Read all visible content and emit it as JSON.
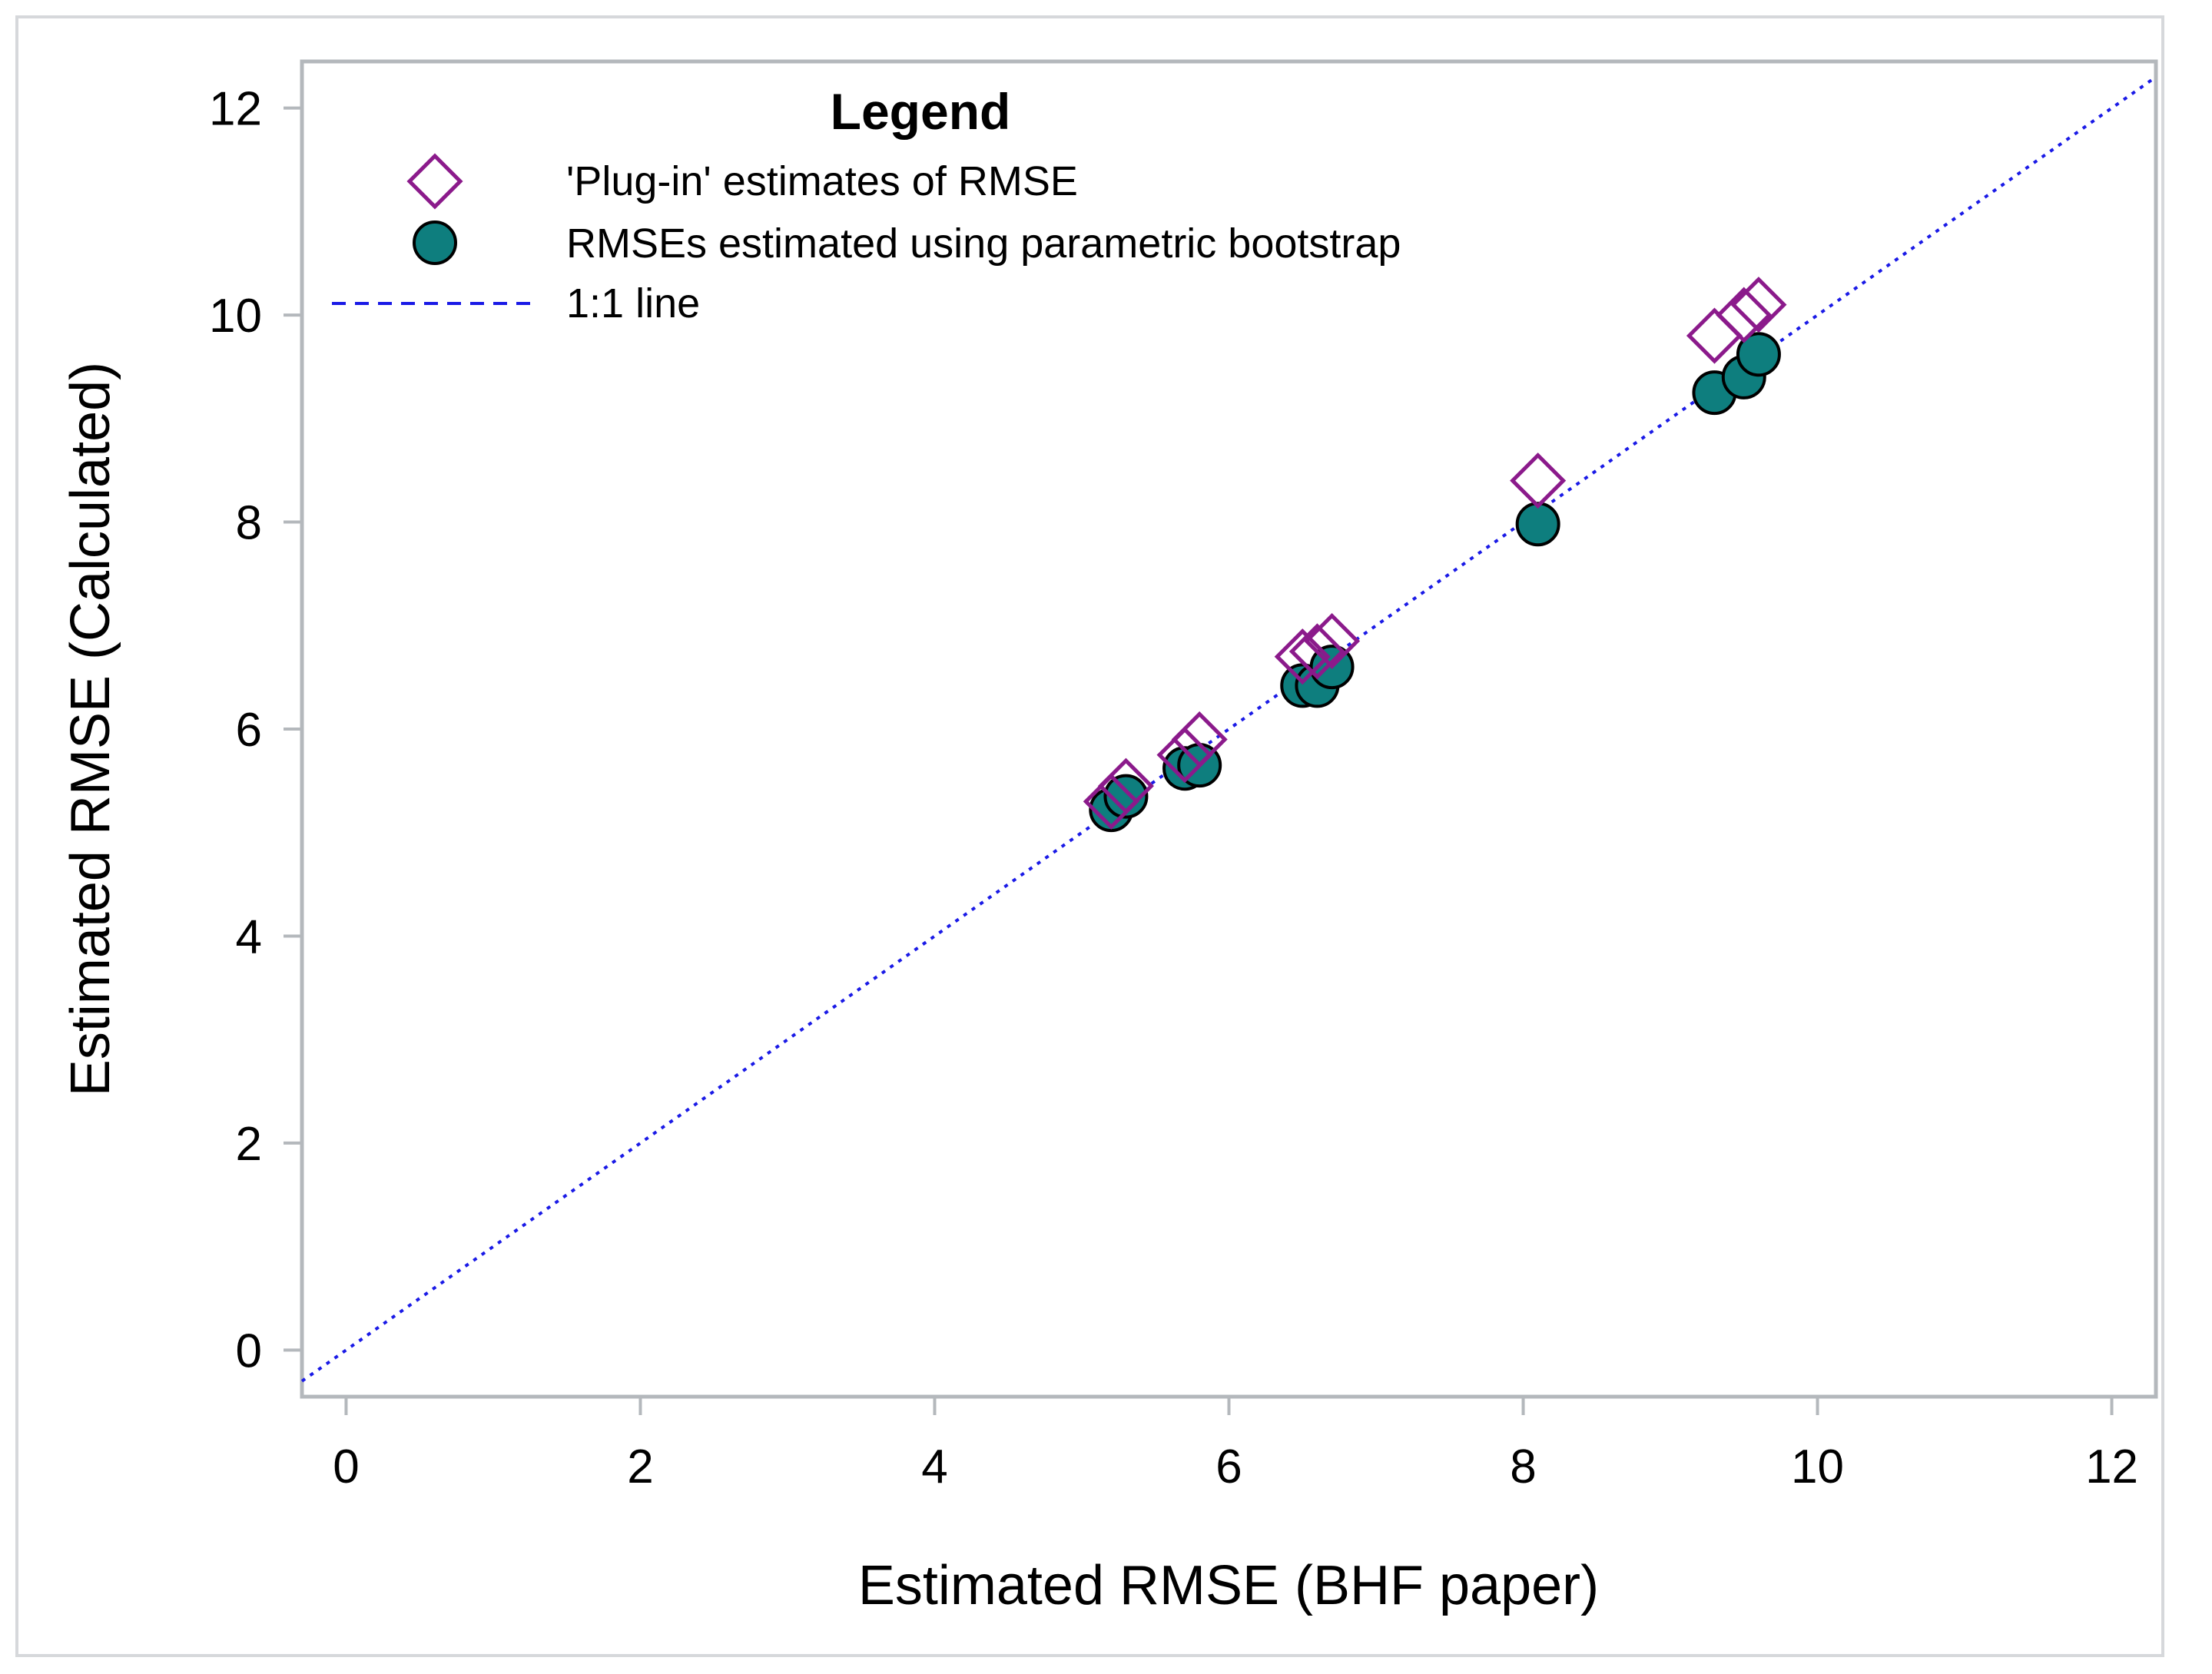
{
  "chart_data": {
    "type": "scatter",
    "xlabel": "Estimated RMSE (BHF paper)",
    "ylabel": "Estimated RMSE (Calculated)",
    "xlim": [
      -0.3,
      12.3
    ],
    "ylim": [
      -0.45,
      12.45
    ],
    "xticks": [
      0,
      2,
      4,
      6,
      8,
      10,
      12
    ],
    "yticks": [
      0,
      2,
      4,
      6,
      8,
      10,
      12
    ],
    "grid": false,
    "legend": {
      "title": "Legend",
      "placement": "top-left",
      "entries": [
        {
          "label": "'Plug-in' estimates of RMSE",
          "marker": "diamond-open"
        },
        {
          "label": "RMSEs estimated using parametric bootstrap",
          "marker": "circle-filled"
        },
        {
          "label": "1:1 line",
          "marker": "dashed-line"
        }
      ]
    },
    "series": [
      {
        "name": "'Plug-in' estimates of RMSE",
        "marker": "diamond-open",
        "color": "#8B1A8B",
        "x": [
          5.2,
          5.3,
          5.7,
          5.8,
          6.5,
          6.6,
          6.7,
          8.1,
          9.3,
          9.5,
          9.6
        ],
        "y": [
          5.3,
          5.45,
          5.75,
          5.9,
          6.7,
          6.75,
          6.85,
          8.4,
          9.8,
          10.0,
          10.1
        ]
      },
      {
        "name": "RMSEs estimated using parametric bootstrap",
        "marker": "circle-filled",
        "color": "#0E7E7E",
        "x": [
          5.2,
          5.3,
          5.7,
          5.8,
          6.5,
          6.6,
          6.7,
          8.1,
          9.3,
          9.5,
          9.6
        ],
        "y": [
          5.22,
          5.35,
          5.62,
          5.65,
          6.42,
          6.42,
          6.6,
          7.98,
          9.25,
          9.4,
          9.62
        ]
      }
    ],
    "reference_line": {
      "name": "1:1 line",
      "color": "#1A1AE6",
      "style": "dotted"
    }
  },
  "colors": {
    "frame": "#b4b8bc",
    "plugin": "#8B1A8B",
    "bootstrap_fill": "#0E7E7E",
    "line": "#1A1AE6"
  }
}
